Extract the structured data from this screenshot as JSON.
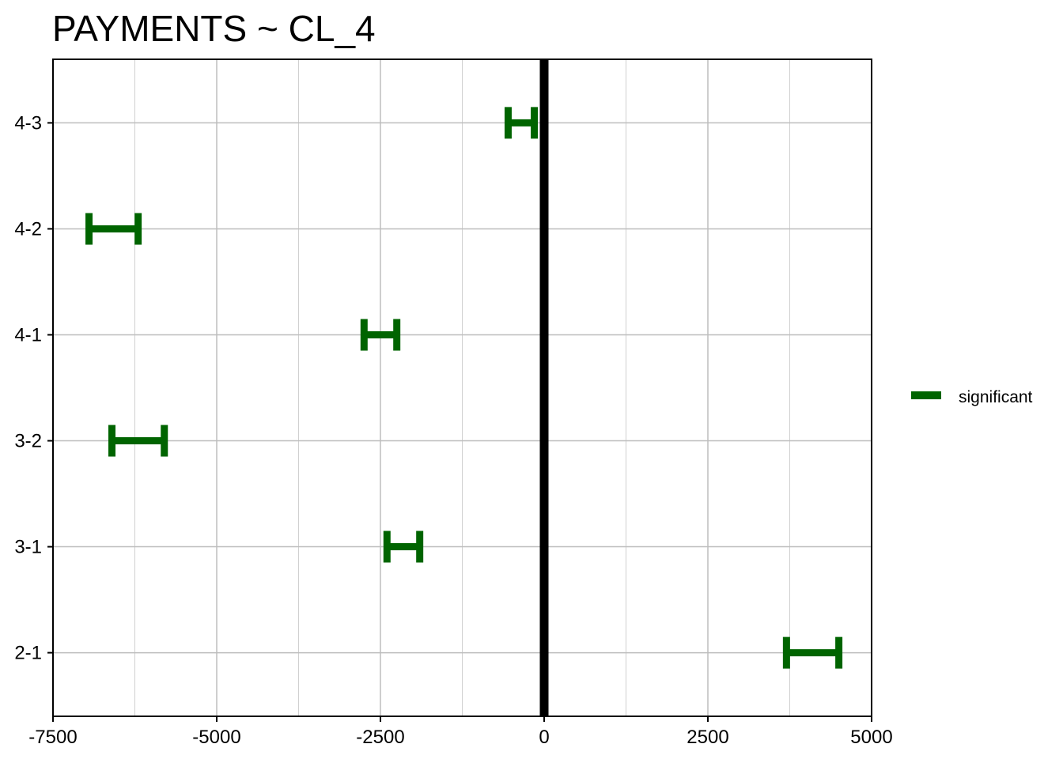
{
  "chart_data": {
    "type": "errorbar",
    "title": "PAYMENTS  ~ CL_4",
    "xlabel": "",
    "ylabel": "",
    "xlim": [
      -7500,
      5000
    ],
    "x_ticks": [
      -7500,
      -5000,
      -2500,
      0,
      2500,
      5000
    ],
    "x_tick_labels": [
      "-7500",
      "-5000",
      "-2500",
      "0",
      "2500",
      "5000"
    ],
    "categories": [
      "2-1",
      "3-1",
      "3-2",
      "4-1",
      "4-2",
      "4-3"
    ],
    "grid": true,
    "reference_line_x": 0,
    "series": [
      {
        "name": "significant",
        "color": "#006400",
        "intervals": [
          {
            "category": "2-1",
            "lower": 3700,
            "upper": 4500
          },
          {
            "category": "3-1",
            "lower": -2400,
            "upper": -1900
          },
          {
            "category": "3-2",
            "lower": -6600,
            "upper": -5800
          },
          {
            "category": "4-1",
            "lower": -2750,
            "upper": -2250
          },
          {
            "category": "4-2",
            "lower": -6950,
            "upper": -6200
          },
          {
            "category": "4-3",
            "lower": -550,
            "upper": -150
          }
        ]
      }
    ],
    "legend": {
      "position": "right",
      "entries": [
        "significant"
      ]
    }
  }
}
